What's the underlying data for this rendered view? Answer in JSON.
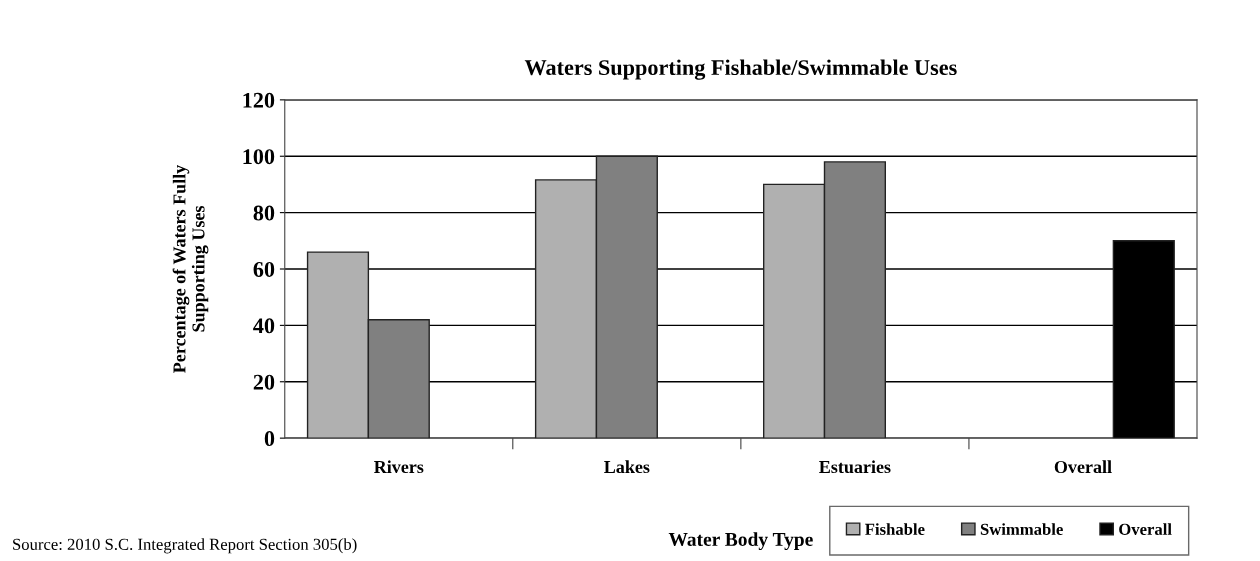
{
  "chart_data": {
    "type": "bar",
    "title": "Waters Supporting Fishable/Swimmable Uses",
    "xlabel": "Water Body Type",
    "ylabel": "Percentage of Waters Fully\nSupporting Uses",
    "categories": [
      "Rivers",
      "Lakes",
      "Estuaries",
      "Overall"
    ],
    "series": [
      {
        "name": "Fishable",
        "color": "#b0b0b0",
        "values": [
          66,
          91.6,
          90,
          null
        ]
      },
      {
        "name": "Swimmable",
        "color": "#808080",
        "values": [
          42,
          100,
          98,
          null
        ]
      },
      {
        "name": "Overall",
        "color": "#000000",
        "values": [
          null,
          null,
          null,
          70
        ]
      }
    ],
    "ylim": [
      0,
      120
    ],
    "yticks": [
      0,
      20,
      40,
      60,
      80,
      100,
      120
    ],
    "grid": "y",
    "legend": "bottom right",
    "annotations": [
      "Source: 2010 S.C. Integrated Report Section 305(b)"
    ]
  }
}
